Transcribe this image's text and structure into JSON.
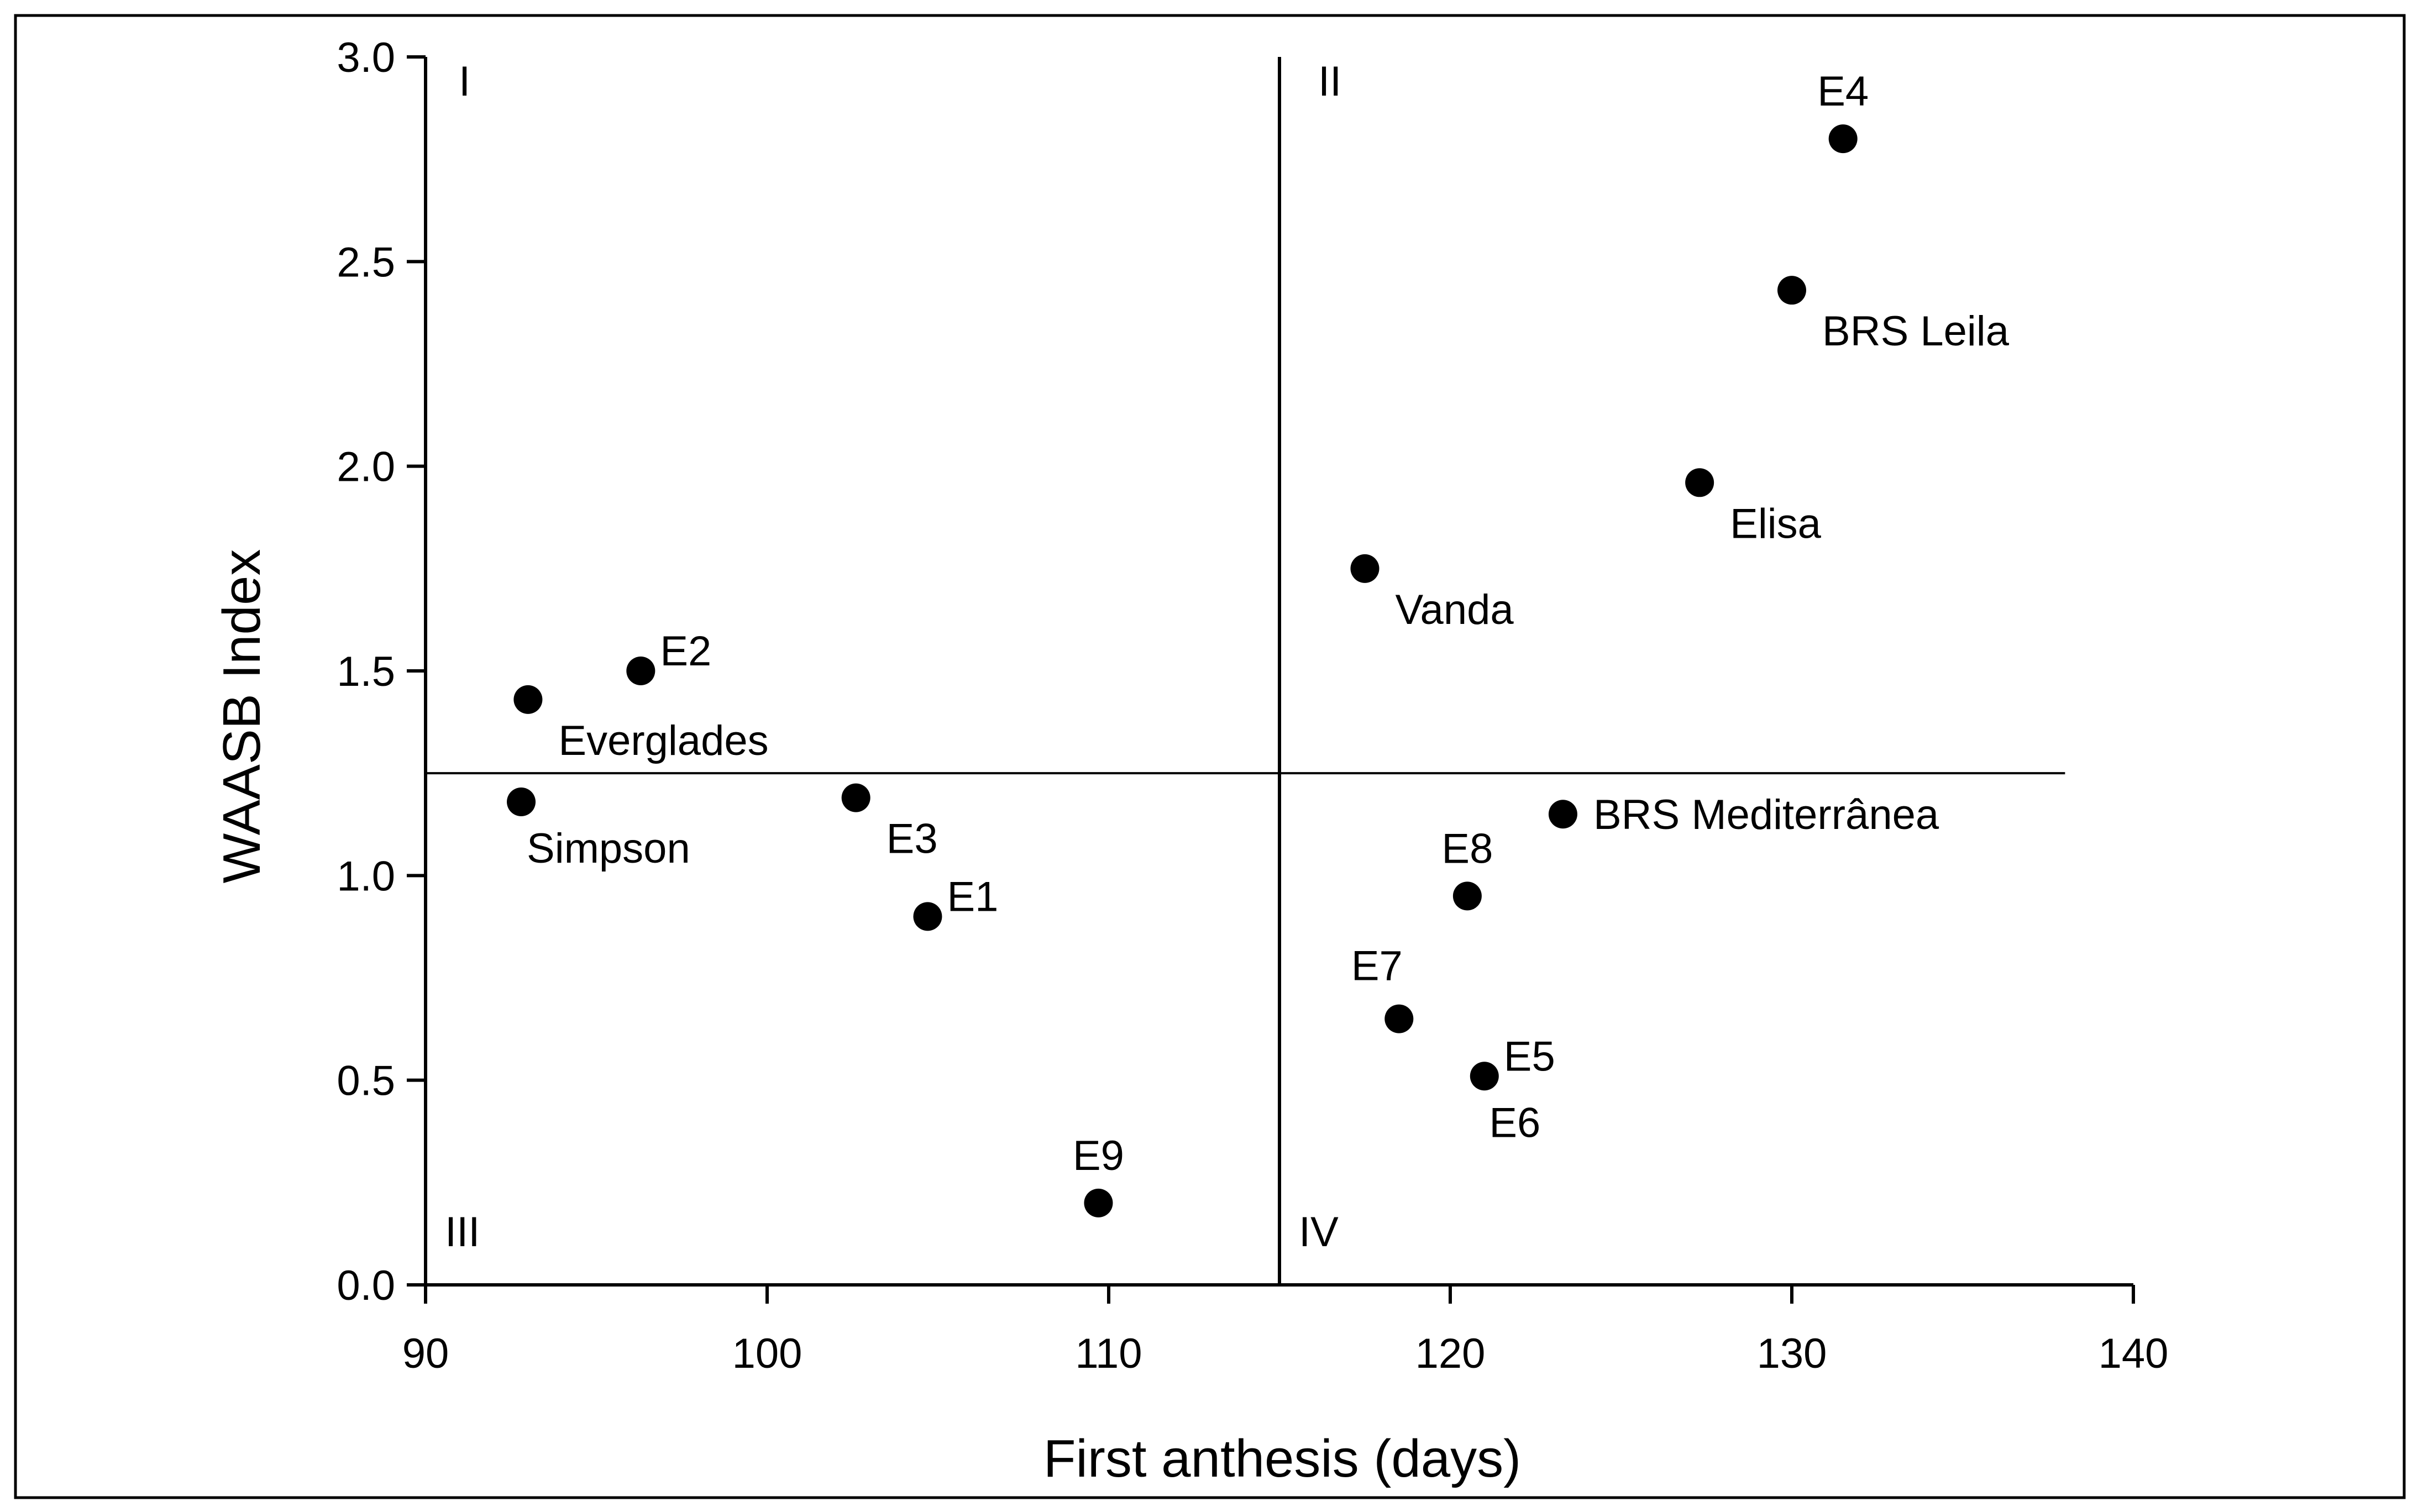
{
  "chart_data": {
    "type": "scatter",
    "title": "",
    "xlabel": "First anthesis (days)",
    "ylabel": "WAASB Index",
    "xlim": [
      90,
      140
    ],
    "ylim": [
      0.0,
      3.0
    ],
    "xticks": [
      90,
      100,
      110,
      120,
      130,
      140
    ],
    "xtick_labels": [
      "90",
      "100",
      "110",
      "120",
      "130",
      "140"
    ],
    "yticks": [
      0.0,
      0.5,
      1.0,
      1.5,
      2.0,
      2.5,
      3.0
    ],
    "ytick_labels": [
      "0.0",
      "0.5",
      "1.0",
      "1.5",
      "2.0",
      "2.5",
      "3.0"
    ],
    "reference_lines": {
      "x": 115,
      "y": 1.25
    },
    "quadrants": [
      "I",
      "II",
      "III",
      "IV"
    ],
    "points": [
      {
        "label": "E4",
        "x": 131.5,
        "y": 2.8,
        "label_pos": "above"
      },
      {
        "label": "BRS Leila",
        "x": 130.0,
        "y": 2.43,
        "label_pos": "below-right"
      },
      {
        "label": "Elisa",
        "x": 127.3,
        "y": 1.96,
        "label_pos": "below-right"
      },
      {
        "label": "Vanda",
        "x": 117.5,
        "y": 1.75,
        "label_pos": "below-right"
      },
      {
        "label": "E2",
        "x": 96.3,
        "y": 1.5,
        "label_pos": "right-up"
      },
      {
        "label": "Everglades",
        "x": 93.0,
        "y": 1.43,
        "label_pos": "below-right"
      },
      {
        "label": "Simpson",
        "x": 92.8,
        "y": 1.18,
        "label_pos": "below"
      },
      {
        "label": "E3",
        "x": 102.6,
        "y": 1.19,
        "label_pos": "below-right"
      },
      {
        "label": "E1",
        "x": 104.7,
        "y": 0.9,
        "label_pos": "right-up"
      },
      {
        "label": "E9",
        "x": 109.7,
        "y": 0.2,
        "label_pos": "above"
      },
      {
        "label": "BRS Mediterrânea",
        "x": 123.3,
        "y": 1.15,
        "label_pos": "right"
      },
      {
        "label": "E8",
        "x": 120.5,
        "y": 0.95,
        "label_pos": "above"
      },
      {
        "label": "E7",
        "x": 118.5,
        "y": 0.65,
        "label_pos": "above-left"
      },
      {
        "label": "E5",
        "x": 121.0,
        "y": 0.51,
        "label_pos": "right-up"
      },
      {
        "label": "E6",
        "x": 121.0,
        "y": 0.51,
        "label_pos": "below"
      }
    ]
  }
}
